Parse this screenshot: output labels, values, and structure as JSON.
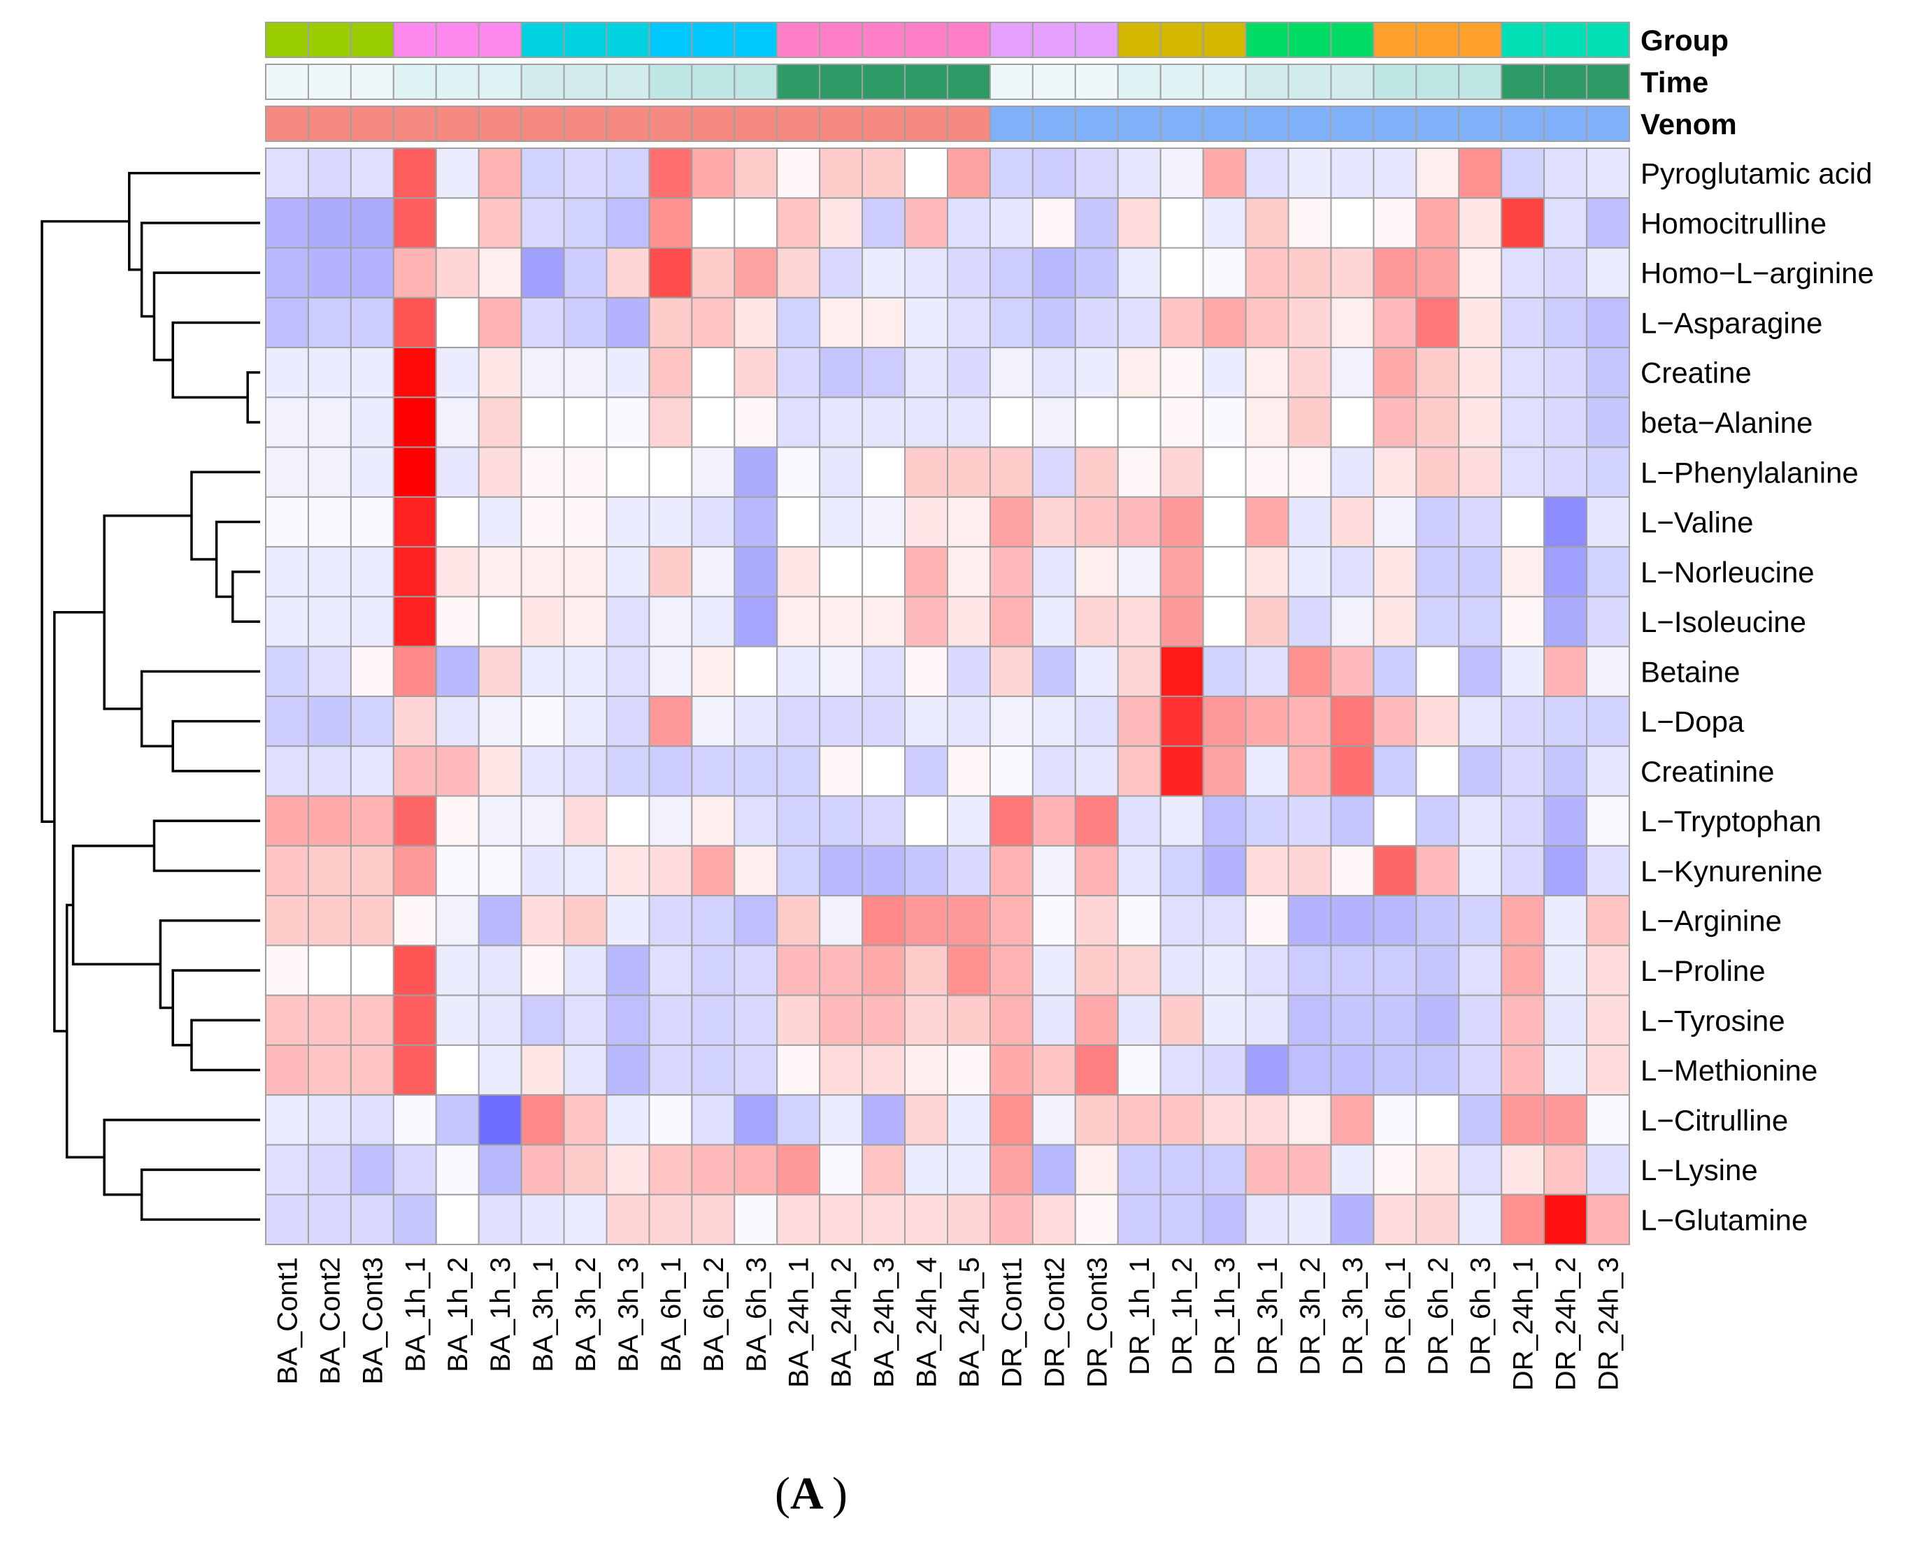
{
  "chart_data": {
    "type": "heatmap",
    "title": "",
    "panel_label": "A",
    "annotation_tracks": [
      "Group",
      "Time",
      "Venom"
    ],
    "columns": [
      "BA_Cont1",
      "BA_Cont2",
      "BA_Cont3",
      "BA_1h_1",
      "BA_1h_2",
      "BA_1h_3",
      "BA_3h_1",
      "BA_3h_2",
      "BA_3h_3",
      "BA_6h_1",
      "BA_6h_2",
      "BA_6h_3",
      "BA_24h_1",
      "BA_24h_2",
      "BA_24h_3",
      "BA_24h_4",
      "BA_24h_5",
      "DR_Cont1",
      "DR_Cont2",
      "DR_Cont3",
      "DR_1h_1",
      "DR_1h_2",
      "DR_1h_3",
      "DR_3h_1",
      "DR_3h_2",
      "DR_3h_3",
      "DR_6h_1",
      "DR_6h_2",
      "DR_6h_3",
      "DR_24h_1",
      "DR_24h_2",
      "DR_24h_3"
    ],
    "rows": [
      "Pyroglutamic acid",
      "Homocitrulline",
      "Homo−L−arginine",
      "L−Asparagine",
      "Creatine",
      "beta−Alanine",
      "L−Phenylalanine",
      "L−Valine",
      "L−Norleucine",
      "L−Isoleucine",
      "Betaine",
      "L−Dopa",
      "Creatinine",
      "L−Tryptophan",
      "L−Kynurenine",
      "L−Arginine",
      "L−Proline",
      "L−Tyrosine",
      "L−Methionine",
      "L−Citrulline",
      "L−Lysine",
      "L−Glutamine"
    ],
    "group_colors": [
      "#9acd00",
      "#9acd00",
      "#9acd00",
      "#ff88ee",
      "#ff88ee",
      "#ff88ee",
      "#00d2e0",
      "#00d2e0",
      "#00d2e0",
      "#00c8ff",
      "#00c8ff",
      "#00c8ff",
      "#ff80c8",
      "#ff80c8",
      "#ff80c8",
      "#ff80c8",
      "#ff80c8",
      "#e6a0ff",
      "#e6a0ff",
      "#e6a0ff",
      "#d4b800",
      "#d4b800",
      "#d4b800",
      "#00dc64",
      "#00dc64",
      "#00dc64",
      "#ffa028",
      "#ffa028",
      "#ffa028",
      "#00e0b4",
      "#00e0b4",
      "#00e0b4"
    ],
    "time_colors": [
      "#eef8fa",
      "#eef8fa",
      "#eef8fa",
      "#e0f3f4",
      "#e0f3f4",
      "#e0f3f4",
      "#d2ecee",
      "#d2ecee",
      "#d2ecee",
      "#c0e5e5",
      "#c0e5e5",
      "#c0e5e5",
      "#2e9a66",
      "#2e9a66",
      "#2e9a66",
      "#2e9a66",
      "#2e9a66",
      "#eef8fa",
      "#eef8fa",
      "#eef8fa",
      "#e0f3f4",
      "#e0f3f4",
      "#e0f3f4",
      "#d2ecee",
      "#d2ecee",
      "#d2ecee",
      "#c0e5e5",
      "#c0e5e5",
      "#c0e5e5",
      "#2e9a66",
      "#2e9a66",
      "#2e9a66"
    ],
    "venom_colors": [
      "#f78a80",
      "#f78a80",
      "#f78a80",
      "#f78a80",
      "#f78a80",
      "#f78a80",
      "#f78a80",
      "#f78a80",
      "#f78a80",
      "#f78a80",
      "#f78a80",
      "#f78a80",
      "#f78a80",
      "#f78a80",
      "#f78a80",
      "#f78a80",
      "#f78a80",
      "#80b0f8",
      "#80b0f8",
      "#80b0f8",
      "#80b0f8",
      "#80b0f8",
      "#80b0f8",
      "#80b0f8",
      "#80b0f8",
      "#80b0f8",
      "#80b0f8",
      "#80b0f8",
      "#80b0f8",
      "#80b0f8",
      "#80b0f8",
      "#80b0f8"
    ],
    "color_scale": {
      "low": "#4040ff",
      "mid": "#ffffff",
      "high": "#ff0000",
      "range": [
        -3,
        3
      ]
    },
    "values": [
      [
        -0.5,
        -0.6,
        -0.5,
        1.9,
        -0.3,
        0.9,
        -0.7,
        -0.6,
        -0.7,
        1.7,
        1.0,
        0.6,
        0.1,
        0.6,
        0.6,
        0.0,
        1.1,
        -0.7,
        -0.8,
        -0.6,
        -0.4,
        -0.2,
        1.0,
        -0.5,
        -0.3,
        -0.4,
        -0.4,
        0.2,
        1.3,
        -0.7,
        -0.5,
        -0.4
      ],
      [
        -1.2,
        -1.3,
        -1.3,
        1.9,
        0.0,
        0.7,
        -0.6,
        -0.7,
        -1.0,
        1.3,
        0.0,
        0.0,
        0.7,
        0.3,
        -0.8,
        0.8,
        -0.5,
        -0.4,
        0.1,
        -0.9,
        0.4,
        0.0,
        -0.3,
        0.6,
        0.1,
        0.0,
        0.1,
        1.0,
        0.3,
        2.2,
        -0.5,
        -1.0
      ],
      [
        -1.1,
        -1.2,
        -1.2,
        0.9,
        0.5,
        0.2,
        -1.5,
        -0.8,
        0.5,
        2.1,
        0.6,
        1.1,
        0.5,
        -0.6,
        -0.3,
        -0.4,
        -0.6,
        -0.8,
        -1.1,
        -0.9,
        -0.3,
        0.0,
        -0.1,
        0.7,
        0.6,
        0.5,
        1.2,
        1.1,
        0.2,
        -0.5,
        -0.6,
        -0.3
      ],
      [
        -1.0,
        -0.8,
        -0.8,
        2.0,
        0.0,
        0.9,
        -0.6,
        -0.8,
        -1.2,
        0.6,
        0.7,
        0.3,
        -0.7,
        0.2,
        0.2,
        -0.3,
        -0.5,
        -0.7,
        -0.9,
        -0.6,
        -0.5,
        0.7,
        1.0,
        0.7,
        0.5,
        0.2,
        0.8,
        1.6,
        0.3,
        -0.6,
        -0.8,
        -1.0
      ],
      [
        -0.3,
        -0.3,
        -0.3,
        2.9,
        -0.3,
        0.3,
        -0.2,
        -0.2,
        -0.3,
        0.7,
        0.0,
        0.5,
        -0.6,
        -0.9,
        -0.8,
        -0.4,
        -0.6,
        -0.2,
        -0.4,
        -0.3,
        0.2,
        0.1,
        -0.3,
        0.2,
        0.5,
        -0.2,
        1.0,
        0.6,
        0.3,
        -0.5,
        -0.6,
        -0.9
      ],
      [
        -0.2,
        -0.2,
        -0.3,
        3.0,
        -0.2,
        0.5,
        0.0,
        0.0,
        -0.1,
        0.5,
        0.0,
        0.1,
        -0.5,
        -0.4,
        -0.4,
        -0.4,
        -0.4,
        0.0,
        -0.2,
        0.0,
        0.0,
        0.1,
        -0.1,
        0.2,
        0.6,
        0.0,
        0.8,
        0.6,
        0.3,
        -0.5,
        -0.6,
        -0.9
      ],
      [
        -0.2,
        -0.2,
        -0.3,
        3.0,
        -0.4,
        0.4,
        0.1,
        0.1,
        0.0,
        0.0,
        -0.2,
        -1.3,
        -0.1,
        -0.4,
        0.0,
        0.6,
        0.6,
        0.6,
        -0.6,
        0.6,
        0.1,
        0.5,
        0.0,
        0.1,
        0.1,
        -0.4,
        0.3,
        0.6,
        0.4,
        -0.5,
        -0.6,
        -0.7
      ],
      [
        -0.1,
        -0.1,
        -0.1,
        2.6,
        0.0,
        -0.3,
        0.1,
        0.1,
        -0.3,
        -0.3,
        -0.5,
        -1.1,
        0.0,
        -0.3,
        -0.2,
        0.3,
        0.2,
        1.1,
        0.5,
        0.7,
        0.8,
        1.2,
        0.0,
        1.0,
        -0.4,
        0.4,
        -0.2,
        -0.8,
        -0.6,
        0.0,
        -1.8,
        -0.4
      ],
      [
        -0.3,
        -0.3,
        -0.3,
        2.6,
        0.3,
        0.2,
        0.2,
        0.2,
        -0.3,
        0.6,
        -0.2,
        -1.3,
        0.3,
        0.0,
        0.0,
        0.9,
        0.2,
        0.8,
        -0.4,
        0.2,
        -0.2,
        1.1,
        0.0,
        0.3,
        -0.3,
        -0.5,
        0.3,
        -0.8,
        -0.8,
        0.2,
        -1.5,
        -0.7
      ],
      [
        -0.3,
        -0.3,
        -0.3,
        2.6,
        0.1,
        0.0,
        0.3,
        0.2,
        -0.5,
        -0.2,
        -0.3,
        -1.4,
        0.2,
        0.2,
        0.2,
        0.8,
        0.3,
        0.9,
        -0.3,
        0.5,
        0.4,
        1.2,
        0.0,
        0.6,
        -0.6,
        -0.2,
        0.3,
        -0.7,
        -0.7,
        0.1,
        -1.3,
        -0.6
      ],
      [
        -0.7,
        -0.5,
        0.1,
        1.4,
        -1.1,
        0.5,
        -0.3,
        -0.3,
        -0.5,
        -0.2,
        0.2,
        0.0,
        -0.3,
        -0.2,
        -0.5,
        0.1,
        -0.6,
        0.5,
        -0.9,
        -0.3,
        0.5,
        2.7,
        -0.7,
        -0.5,
        1.3,
        0.8,
        -0.8,
        0.0,
        -1.0,
        -0.3,
        0.9,
        -0.2
      ],
      [
        -0.8,
        -0.9,
        -0.7,
        0.5,
        -0.4,
        -0.2,
        -0.1,
        -0.3,
        -0.6,
        1.2,
        -0.2,
        -0.4,
        -0.6,
        -0.6,
        -0.6,
        -0.3,
        -0.4,
        -0.2,
        -0.3,
        -0.5,
        0.8,
        2.4,
        1.2,
        1.0,
        0.9,
        1.6,
        0.8,
        0.4,
        -0.4,
        -0.6,
        -0.7,
        -0.7
      ],
      [
        -0.5,
        -0.5,
        -0.4,
        0.8,
        0.8,
        0.3,
        -0.4,
        -0.5,
        -0.7,
        -0.8,
        -0.7,
        -0.7,
        -0.7,
        0.1,
        0.0,
        -0.8,
        0.1,
        -0.1,
        -0.5,
        -0.4,
        0.7,
        2.6,
        1.1,
        -0.3,
        0.9,
        1.7,
        -0.8,
        0.0,
        -0.9,
        -0.6,
        -0.9,
        -0.4
      ],
      [
        1.0,
        1.0,
        0.9,
        1.8,
        0.1,
        -0.2,
        -0.2,
        0.4,
        0.0,
        -0.2,
        0.2,
        -0.5,
        -0.7,
        -0.7,
        -0.6,
        0.0,
        -0.3,
        1.6,
        0.9,
        1.5,
        -0.5,
        -0.3,
        -1.0,
        -0.7,
        -0.6,
        -0.9,
        0.0,
        -0.8,
        -0.4,
        -0.6,
        -1.2,
        -0.1
      ],
      [
        0.7,
        0.6,
        0.6,
        1.2,
        -0.1,
        -0.1,
        -0.4,
        -0.3,
        0.3,
        0.4,
        1.0,
        0.2,
        -0.7,
        -1.1,
        -1.1,
        -0.9,
        -0.6,
        0.9,
        -0.2,
        0.9,
        -0.4,
        -0.7,
        -1.2,
        0.4,
        0.5,
        0.1,
        1.8,
        0.8,
        -0.3,
        -0.6,
        -1.4,
        -0.5
      ],
      [
        0.6,
        0.6,
        0.6,
        0.1,
        -0.2,
        -1.1,
        0.4,
        0.6,
        -0.3,
        -0.6,
        -0.7,
        -1.0,
        0.6,
        -0.2,
        1.4,
        1.2,
        1.2,
        0.9,
        -0.1,
        0.5,
        -0.1,
        -0.5,
        -0.5,
        0.1,
        -1.2,
        -1.2,
        -1.1,
        -0.9,
        -0.7,
        1.0,
        -0.3,
        0.7
      ],
      [
        0.1,
        0.0,
        0.0,
        2.0,
        -0.3,
        -0.4,
        0.1,
        -0.4,
        -1.1,
        -0.5,
        -0.7,
        -0.6,
        0.8,
        0.8,
        1.0,
        0.6,
        1.3,
        0.9,
        -0.3,
        0.6,
        0.5,
        -0.4,
        -0.3,
        -0.5,
        -0.8,
        -0.8,
        -0.8,
        -0.9,
        -0.5,
        1.0,
        -0.3,
        0.4
      ],
      [
        0.7,
        0.7,
        0.7,
        1.9,
        -0.3,
        -0.4,
        -0.8,
        -0.5,
        -1.0,
        -0.6,
        -0.7,
        -0.6,
        0.5,
        0.8,
        0.8,
        0.5,
        0.6,
        0.9,
        -0.4,
        1.0,
        -0.4,
        0.6,
        -0.3,
        -0.4,
        -1.0,
        -0.9,
        -0.9,
        -1.1,
        -0.6,
        0.8,
        -0.4,
        0.4
      ],
      [
        0.8,
        0.7,
        0.7,
        1.9,
        0.0,
        -0.3,
        0.3,
        -0.4,
        -1.1,
        -0.6,
        -0.7,
        -0.6,
        0.1,
        0.4,
        0.4,
        0.2,
        0.1,
        1.0,
        0.7,
        1.5,
        -0.1,
        -0.5,
        -0.6,
        -1.5,
        -1.0,
        -1.0,
        -0.9,
        -0.9,
        -0.6,
        0.8,
        -0.3,
        0.4
      ],
      [
        -0.3,
        -0.4,
        -0.5,
        -0.1,
        -0.9,
        -2.3,
        1.4,
        0.7,
        -0.3,
        -0.1,
        -0.5,
        -1.4,
        -0.7,
        -0.3,
        -1.2,
        0.5,
        -0.3,
        1.3,
        -0.2,
        0.6,
        0.7,
        0.7,
        0.4,
        0.4,
        0.2,
        1.0,
        -0.1,
        0.0,
        -0.9,
        1.2,
        1.2,
        -0.1
      ],
      [
        -0.5,
        -0.6,
        -1.0,
        -0.6,
        -0.1,
        -1.1,
        0.8,
        0.6,
        0.3,
        0.7,
        0.8,
        0.9,
        1.2,
        -0.1,
        0.7,
        -0.3,
        -0.3,
        1.1,
        -1.1,
        0.2,
        -0.8,
        -0.8,
        -0.8,
        0.8,
        0.8,
        -0.3,
        0.1,
        0.3,
        -0.5,
        0.3,
        0.7,
        -0.5
      ],
      [
        -0.6,
        -0.6,
        -0.6,
        -0.9,
        0.0,
        -0.5,
        -0.4,
        -0.3,
        0.5,
        0.5,
        0.5,
        -0.1,
        0.4,
        0.4,
        0.4,
        0.4,
        0.5,
        0.8,
        0.4,
        0.1,
        -0.8,
        -0.8,
        -1.0,
        -0.4,
        -0.3,
        -1.2,
        0.4,
        0.5,
        -0.3,
        1.3,
        2.8,
        0.9
      ]
    ],
    "dendrogram": {
      "merges": [
        [
          4,
          5,
          0.1
        ],
        [
          8,
          9,
          0.22
        ],
        [
          7,
          23,
          0.35
        ],
        [
          6,
          24,
          0.55
        ],
        [
          3,
          22,
          0.7
        ],
        [
          2,
          26,
          0.85
        ],
        [
          1,
          27,
          0.95
        ],
        [
          0,
          28,
          1.05
        ],
        [
          11,
          12,
          0.7
        ],
        [
          10,
          30,
          0.95
        ],
        [
          25,
          31,
          1.25
        ],
        [
          17,
          18,
          0.55
        ],
        [
          16,
          33,
          0.7
        ],
        [
          15,
          34,
          0.8
        ],
        [
          13,
          14,
          0.85
        ],
        [
          36,
          35,
          1.5
        ],
        [
          20,
          21,
          0.95
        ],
        [
          19,
          38,
          1.25
        ],
        [
          37,
          39,
          1.55
        ],
        [
          32,
          40,
          1.65
        ],
        [
          29,
          41,
          1.75
        ]
      ]
    }
  }
}
